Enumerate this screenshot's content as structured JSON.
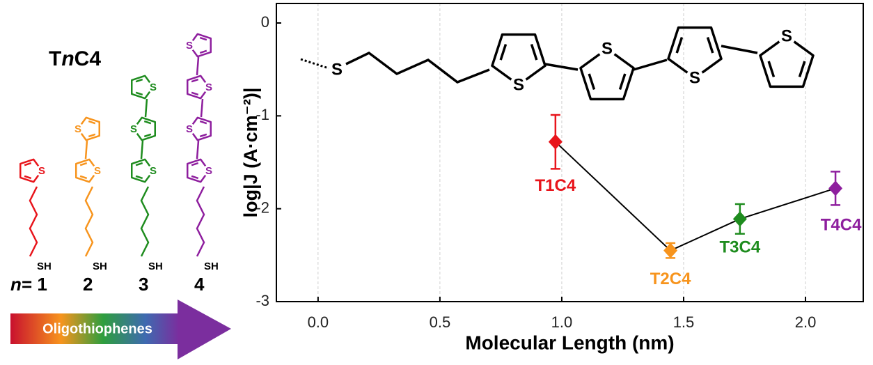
{
  "left_panel": {
    "title_prefix": "T",
    "title_italic": "n",
    "title_suffix": "C4",
    "thiol": "SH",
    "sulfur": "S",
    "index_symbol": "n",
    "index_labels": [
      "= 1",
      "2",
      "3",
      "4"
    ],
    "colors": [
      "#e8141b",
      "#f7941d",
      "#1e8c1e",
      "#8e1e9e"
    ],
    "arrow_label": "Oligothiophenes"
  },
  "chart_data": {
    "type": "line",
    "xlabel": "Molecular Length (nm)",
    "ylabel": "log|J (A·cm⁻²)|",
    "xlim": [
      -0.171,
      2.237
    ],
    "ylim": [
      -3,
      0.21
    ],
    "xticks": [
      {
        "value": 0,
        "label": "0.0"
      },
      {
        "value": 0.5,
        "label": "0.5"
      },
      {
        "value": 1,
        "label": "1.0"
      },
      {
        "value": 1.5,
        "label": "1.5"
      },
      {
        "value": 2,
        "label": "2.0"
      }
    ],
    "yticks": [
      0,
      -1,
      -2,
      -3
    ],
    "series": [
      {
        "name": "TnC4",
        "color": "#000000",
        "x": [
          0.974,
          1.446,
          1.731,
          2.123
        ],
        "values": [
          -1.28,
          -2.45,
          -2.11,
          -1.78
        ],
        "errors": [
          0.29,
          0.08,
          0.16,
          0.18
        ],
        "point_labels": [
          "T1C4",
          "T2C4",
          "T3C4",
          "T4C4"
        ],
        "point_colors": [
          "#e8141b",
          "#f7941d",
          "#1e8c1e",
          "#8e1e9e"
        ]
      }
    ]
  }
}
